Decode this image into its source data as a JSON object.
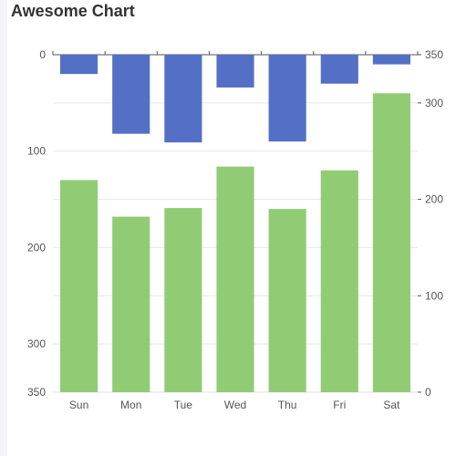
{
  "chart_data": {
    "type": "bar",
    "title": "Awesome Chart",
    "categories": [
      "Sun",
      "Mon",
      "Tue",
      "Wed",
      "Thu",
      "Fri",
      "Sat"
    ],
    "series": [
      {
        "axis": "left-inverted",
        "color": "#5470c6",
        "values": [
          20,
          82,
          91,
          34,
          90,
          30,
          10
        ]
      },
      {
        "axis": "right",
        "color": "#91cc75",
        "values": [
          220,
          182,
          191,
          234,
          190,
          230,
          310
        ]
      }
    ],
    "left_axis": {
      "min": 0,
      "max": 350,
      "inverse": true,
      "ticks": [
        0,
        100,
        200,
        300,
        350
      ]
    },
    "right_axis": {
      "min": 0,
      "max": 350,
      "ticks": [
        0,
        100,
        200,
        300,
        350
      ]
    },
    "grid": true
  }
}
